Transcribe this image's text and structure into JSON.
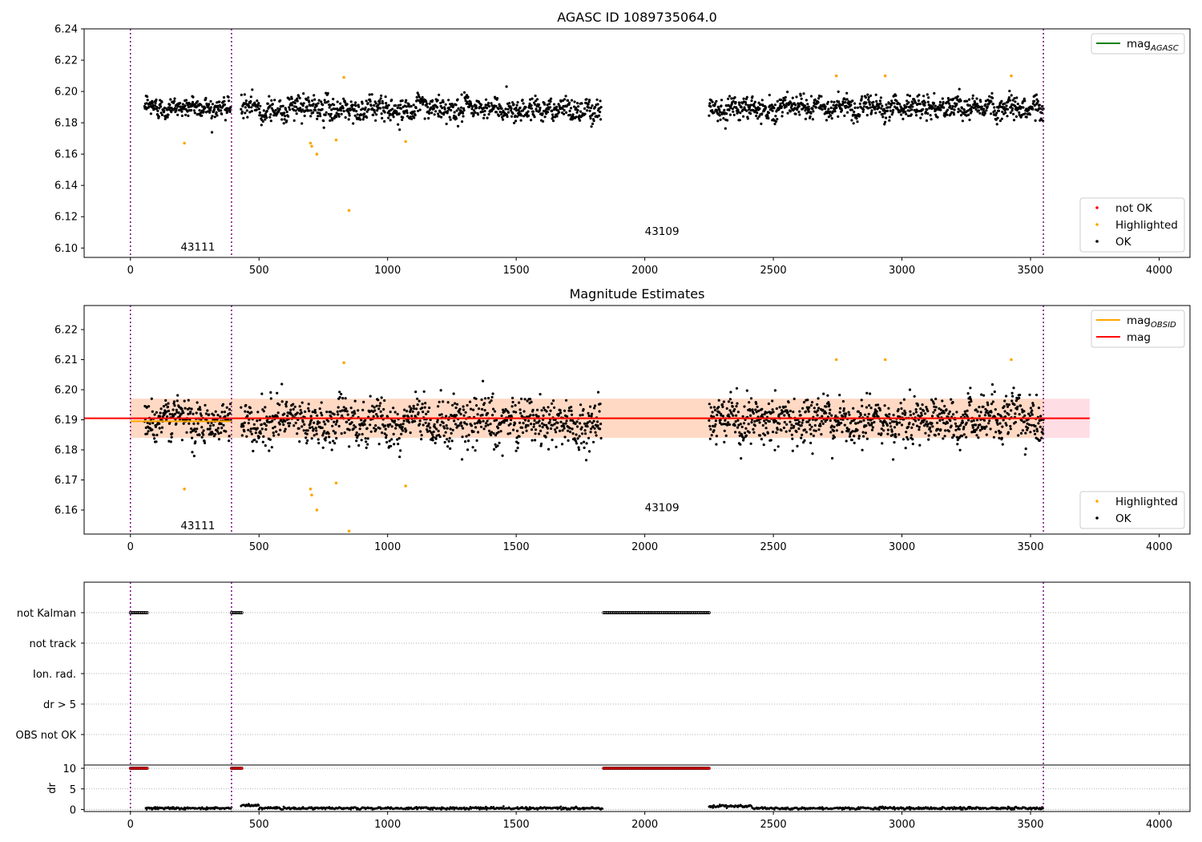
{
  "chart_data": [
    {
      "type": "scatter",
      "title": "AGASC ID 1089735064.0",
      "xlim": [
        -180,
        4120
      ],
      "ylim": [
        6.094,
        6.24
      ],
      "xticks": [
        0,
        500,
        1000,
        1500,
        2000,
        2500,
        3000,
        3500,
        4000
      ],
      "yticks": [
        6.1,
        6.12,
        6.14,
        6.16,
        6.18,
        6.2,
        6.22,
        6.24
      ],
      "vlines": [
        0,
        393,
        3550
      ],
      "obsid_labels": [
        {
          "text": "43111",
          "x": 195,
          "y": 6.101
        },
        {
          "text": "43109",
          "x": 2000,
          "y": 6.111
        }
      ],
      "legend_upper": [
        {
          "label": "mag",
          "sub": "AGASC",
          "color": "#008000",
          "kind": "line"
        }
      ],
      "legend_lower": [
        {
          "label": "not OK",
          "color": "#ff0000",
          "kind": "dot"
        },
        {
          "label": "Highlighted",
          "color": "#ffa500",
          "kind": "dot"
        },
        {
          "label": "OK",
          "color": "#000000",
          "kind": "dot"
        }
      ],
      "series": [
        {
          "name": "OK",
          "color": "#000000",
          "segments": [
            {
              "x0": 55,
              "x1": 390,
              "mean": 6.19,
              "sd": 0.0055,
              "n": 230
            },
            {
              "x0": 430,
              "x1": 1830,
              "mean": 6.189,
              "sd": 0.0062,
              "n": 900
            },
            {
              "x0": 2250,
              "x1": 3550,
              "mean": 6.19,
              "sd": 0.006,
              "n": 880
            }
          ]
        },
        {
          "name": "Highlighted",
          "color": "#ffa500",
          "x": [
            210,
            700,
            705,
            725,
            800,
            830,
            850,
            1070,
            2745,
            2935,
            3425
          ],
          "y": [
            6.167,
            6.167,
            6.165,
            6.16,
            6.169,
            6.209,
            6.124,
            6.168,
            6.21,
            6.21,
            6.21
          ]
        }
      ]
    },
    {
      "type": "scatter",
      "title": "Magnitude Estimates",
      "xlim": [
        -180,
        4120
      ],
      "ylim": [
        6.152,
        6.228
      ],
      "xticks": [
        0,
        500,
        1000,
        1500,
        2000,
        2500,
        3000,
        3500,
        4000
      ],
      "yticks": [
        6.16,
        6.17,
        6.18,
        6.19,
        6.2,
        6.21,
        6.22
      ],
      "vlines": [
        0,
        393,
        3550
      ],
      "obsid_labels": [
        {
          "text": "43111",
          "x": 195,
          "y": 6.155
        },
        {
          "text": "43109",
          "x": 2000,
          "y": 6.161
        }
      ],
      "mag": 6.1905,
      "mag_band": [
        6.184,
        6.197
      ],
      "mag_obsid": [
        {
          "x0": 0,
          "x1": 393,
          "value": 6.1895
        },
        {
          "x0": 393,
          "x1": 3550,
          "value": 6.1905
        }
      ],
      "legend_upper": [
        {
          "label": "mag",
          "sub": "OBSID",
          "color": "#ffa500",
          "kind": "line"
        },
        {
          "label": "mag",
          "sub": "",
          "color": "#ff0000",
          "kind": "line"
        }
      ],
      "legend_lower": [
        {
          "label": "Highlighted",
          "color": "#ffa500",
          "kind": "dot"
        },
        {
          "label": "OK",
          "color": "#000000",
          "kind": "dot"
        }
      ],
      "series": [
        {
          "name": "OK",
          "color": "#000000",
          "segments": [
            {
              "x0": 55,
              "x1": 390,
              "mean": 6.19,
              "sd": 0.0055,
              "n": 230
            },
            {
              "x0": 430,
              "x1": 1830,
              "mean": 6.189,
              "sd": 0.0062,
              "n": 900
            },
            {
              "x0": 2250,
              "x1": 3550,
              "mean": 6.19,
              "sd": 0.006,
              "n": 880
            }
          ]
        },
        {
          "name": "Highlighted",
          "color": "#ffa500",
          "x": [
            210,
            700,
            705,
            725,
            800,
            830,
            850,
            1070,
            2745,
            2935,
            3425
          ],
          "y": [
            6.167,
            6.167,
            6.165,
            6.16,
            6.169,
            6.209,
            6.153,
            6.168,
            6.21,
            6.21,
            6.21
          ]
        }
      ]
    },
    {
      "type": "scatter",
      "title": "",
      "xlim": [
        -180,
        4120
      ],
      "xticks": [
        0,
        500,
        1000,
        1500,
        2000,
        2500,
        3000,
        3500,
        4000
      ],
      "vlines": [
        0,
        393,
        3550
      ],
      "flag_labels": [
        "not Kalman",
        "not track",
        "Ion. rad.",
        "dr > 5",
        "OBS not OK"
      ],
      "flag_ranges": {
        "not Kalman": [
          [
            0,
            65
          ],
          [
            393,
            435
          ],
          [
            1840,
            2250
          ]
        ]
      },
      "dr_ylabel": "dr",
      "dr_yticks": [
        0,
        5,
        10
      ],
      "dr_ylim": [
        -0.5,
        10.8
      ],
      "dr_clipped": [
        [
          0,
          65
        ],
        [
          393,
          435
        ],
        [
          1840,
          2250
        ]
      ],
      "dr_segments": [
        {
          "x0": 60,
          "x1": 393,
          "level": 0.3
        },
        {
          "x0": 430,
          "x1": 500,
          "level": 1.0
        },
        {
          "x0": 500,
          "x1": 1835,
          "level": 0.3
        },
        {
          "x0": 2250,
          "x1": 2420,
          "level": 0.8
        },
        {
          "x0": 2420,
          "x1": 3550,
          "level": 0.3
        }
      ]
    }
  ]
}
